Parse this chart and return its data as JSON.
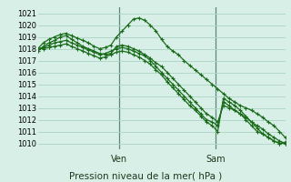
{
  "xlabel": "Pression niveau de la mer( hPa )",
  "ylim": [
    1009.5,
    1021.5
  ],
  "yticks": [
    1010,
    1011,
    1012,
    1013,
    1014,
    1015,
    1016,
    1017,
    1018,
    1019,
    1020,
    1021
  ],
  "bg_color": "#d8efe8",
  "grid_color": "#b0d8c8",
  "line_color": "#1a6b1a",
  "vline_positions": [
    0.33,
    0.72
  ],
  "vline_labels": [
    "Ven",
    "Sam"
  ],
  "series": [
    [
      1018.0,
      1018.5,
      1018.8,
      1019.0,
      1019.2,
      1019.3,
      1019.1,
      1018.9,
      1018.7,
      1018.5,
      1018.2,
      1018.0,
      1018.1,
      1018.3,
      1019.0,
      1019.5,
      1020.0,
      1020.5,
      1020.6,
      1020.4,
      1020.0,
      1019.5,
      1018.8,
      1018.2,
      1017.8,
      1017.5,
      1017.0,
      1016.6,
      1016.2,
      1015.8,
      1015.4,
      1015.0,
      1014.6,
      1014.2,
      1013.8,
      1013.5,
      1013.2,
      1013.0,
      1012.8,
      1012.5,
      1012.2,
      1011.8,
      1011.5,
      1011.0,
      1010.5
    ],
    [
      1017.8,
      1018.2,
      1018.5,
      1018.7,
      1019.0,
      1019.1,
      1018.8,
      1018.5,
      1018.2,
      1018.0,
      1017.8,
      1017.6,
      1017.5,
      1017.6,
      1018.2,
      1018.3,
      1018.2,
      1018.0,
      1017.8,
      1017.5,
      1017.2,
      1016.8,
      1016.5,
      1016.0,
      1015.5,
      1015.0,
      1014.5,
      1014.0,
      1013.5,
      1013.0,
      1012.5,
      1012.2,
      1011.8,
      1013.2,
      1013.0,
      1012.8,
      1012.5,
      1012.2,
      1011.8,
      1011.5,
      1011.2,
      1010.8,
      1010.5,
      1010.2,
      1010.0
    ],
    [
      1018.0,
      1018.1,
      1018.3,
      1018.5,
      1018.6,
      1018.7,
      1018.5,
      1018.3,
      1018.1,
      1017.9,
      1017.7,
      1017.5,
      1017.6,
      1017.8,
      1018.0,
      1018.1,
      1018.0,
      1017.8,
      1017.6,
      1017.4,
      1017.0,
      1016.5,
      1016.0,
      1015.5,
      1015.0,
      1014.5,
      1014.0,
      1013.5,
      1013.0,
      1012.5,
      1012.0,
      1011.8,
      1011.5,
      1013.5,
      1013.2,
      1012.8,
      1012.5,
      1012.0,
      1011.5,
      1011.0,
      1010.8,
      1010.5,
      1010.2,
      1010.0,
      1010.0
    ],
    [
      1018.0,
      1018.0,
      1018.1,
      1018.2,
      1018.3,
      1018.4,
      1018.2,
      1018.0,
      1017.8,
      1017.6,
      1017.4,
      1017.2,
      1017.3,
      1017.5,
      1017.7,
      1017.8,
      1017.7,
      1017.5,
      1017.3,
      1017.0,
      1016.7,
      1016.2,
      1015.8,
      1015.2,
      1014.7,
      1014.2,
      1013.7,
      1013.2,
      1012.8,
      1012.3,
      1011.8,
      1011.5,
      1011.0,
      1013.8,
      1013.5,
      1013.2,
      1012.8,
      1012.3,
      1011.8,
      1011.3,
      1010.8,
      1010.5,
      1010.2,
      1010.0,
      1010.1
    ]
  ]
}
